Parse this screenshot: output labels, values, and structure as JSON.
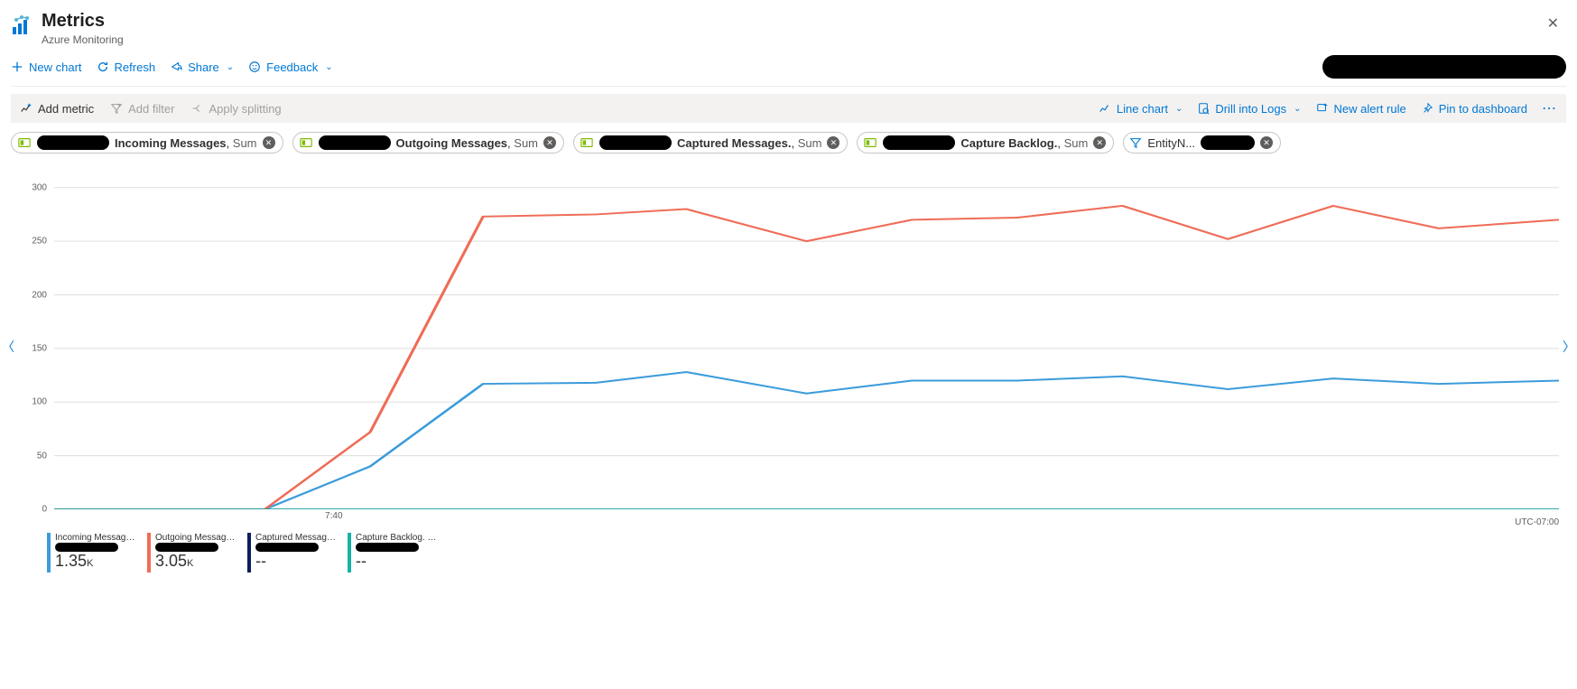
{
  "header": {
    "title": "Metrics",
    "subtitle": "Azure Monitoring"
  },
  "commandbar": {
    "new_chart": "New chart",
    "refresh": "Refresh",
    "share": "Share",
    "feedback": "Feedback"
  },
  "toolbar": {
    "add_metric": "Add metric",
    "add_filter": "Add filter",
    "apply_splitting": "Apply splitting",
    "line_chart": "Line chart",
    "drill_logs": "Drill into Logs",
    "new_alert_rule": "New alert rule",
    "pin_dashboard": "Pin to dashboard"
  },
  "pills": [
    {
      "metric": "Incoming Messages",
      "agg": "Sum"
    },
    {
      "metric": "Outgoing Messages",
      "agg": "Sum"
    },
    {
      "metric": "Captured Messages.",
      "agg": "Sum"
    },
    {
      "metric": "Capture Backlog.",
      "agg": "Sum"
    }
  ],
  "filter_pill": {
    "label": "EntityN..."
  },
  "chart": {
    "type": "line",
    "y_max": 320,
    "y_ticks": [
      0,
      50,
      100,
      150,
      200,
      250,
      300
    ],
    "y_tick_color": "#605e5c",
    "grid_color": "#e1dfdd",
    "grid_color_zero": "#b0b0b0",
    "x_label_740": "7:40",
    "x_label_740_pos": 0.18,
    "timezone": "UTC-07:00",
    "series": [
      {
        "name": "Incoming Messages (Sum)",
        "color": "#3b9cdb",
        "width": 2,
        "points": [
          [
            0.0,
            0
          ],
          [
            0.07,
            0
          ],
          [
            0.14,
            0
          ],
          [
            0.21,
            40
          ],
          [
            0.285,
            117
          ],
          [
            0.36,
            118
          ],
          [
            0.42,
            128
          ],
          [
            0.5,
            108
          ],
          [
            0.57,
            120
          ],
          [
            0.64,
            120
          ],
          [
            0.71,
            124
          ],
          [
            0.78,
            112
          ],
          [
            0.85,
            122
          ],
          [
            0.92,
            117
          ],
          [
            1.0,
            120
          ]
        ]
      },
      {
        "name": "Outgoing Messages (Sum)",
        "color": "#ef6c57",
        "width": 2,
        "points": [
          [
            0.0,
            0
          ],
          [
            0.07,
            0
          ],
          [
            0.14,
            0
          ],
          [
            0.21,
            72
          ],
          [
            0.285,
            273
          ],
          [
            0.36,
            275
          ],
          [
            0.42,
            280
          ],
          [
            0.5,
            250
          ],
          [
            0.57,
            270
          ],
          [
            0.64,
            272
          ],
          [
            0.71,
            283
          ],
          [
            0.78,
            252
          ],
          [
            0.85,
            283
          ],
          [
            0.92,
            262
          ],
          [
            1.0,
            270
          ]
        ]
      },
      {
        "name": "Captured Messages. (Sum)",
        "color": "#0b1e5e",
        "width": 1.5,
        "points": [
          [
            0.0,
            0
          ],
          [
            1.0,
            0
          ]
        ]
      },
      {
        "name": "Capture Backlog. (Sum)",
        "color": "#17b1a5",
        "width": 1.5,
        "points": [
          [
            0.0,
            0
          ],
          [
            1.0,
            0
          ]
        ]
      }
    ]
  },
  "legend": [
    {
      "name": "Incoming Messages (Sum)",
      "value": "1.35",
      "unit": "K",
      "color": "#3b9cdb"
    },
    {
      "name": "Outgoing Messages (Sum)",
      "value": "3.05",
      "unit": "K",
      "color": "#ef6c57"
    },
    {
      "name": "Captured Messages. (...",
      "value": "--",
      "unit": "",
      "color": "#0b1e5e"
    },
    {
      "name": "Capture Backlog. (Sum)",
      "value": "--",
      "unit": "",
      "color": "#17b1a5"
    }
  ]
}
